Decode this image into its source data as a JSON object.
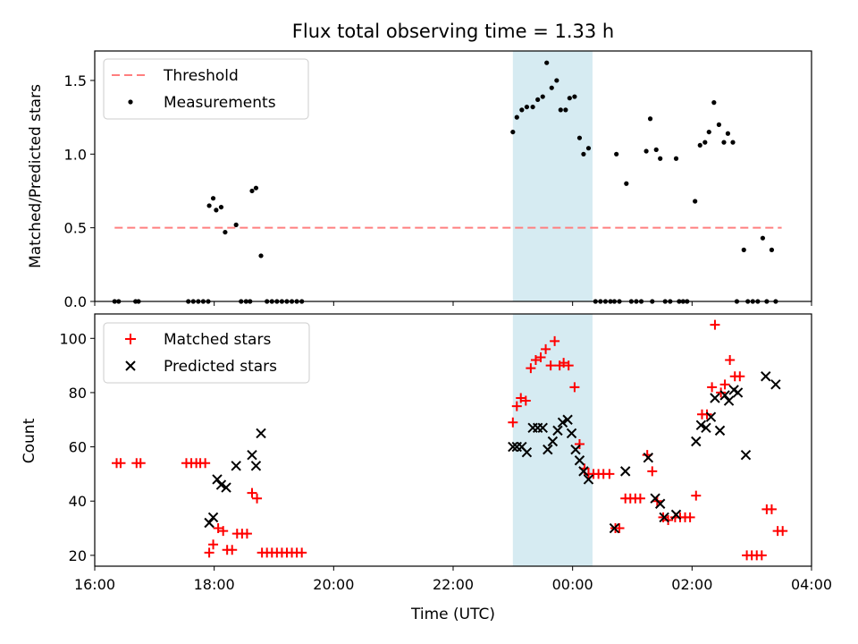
{
  "title": "Flux total observing time = 1.33 h",
  "colors": {
    "threshold": "#ff7f7f",
    "measure": "#000000",
    "matched": "#ff0000",
    "predicted": "#000000",
    "shade": "#add8e6"
  },
  "chart_data": [
    {
      "type": "scatter",
      "ylabel": "Matched/Predicted stars",
      "xlim": [
        "16:00",
        "04:00"
      ],
      "ylim": [
        0,
        1.7
      ],
      "yticks": [
        "0.0",
        "0.5",
        "1.0",
        "1.5"
      ],
      "legend": {
        "placement": "top-left",
        "entries": [
          "Threshold",
          "Measurements"
        ]
      },
      "shaded_interval": [
        "23:00",
        "00:20"
      ],
      "threshold": {
        "name": "Threshold",
        "value": 0.5,
        "x_range": [
          "16:20",
          "03:30"
        ]
      },
      "series": [
        {
          "name": "Measurements",
          "points": [
            [
              "16:20",
              0
            ],
            [
              "16:24",
              0
            ],
            [
              "16:41",
              0
            ],
            [
              "16:44",
              0
            ],
            [
              "17:34",
              0
            ],
            [
              "17:39",
              0
            ],
            [
              "17:44",
              0
            ],
            [
              "17:49",
              0
            ],
            [
              "17:54",
              0
            ],
            [
              "17:55",
              0.65
            ],
            [
              "17:59",
              0.7
            ],
            [
              "18:02",
              0.62
            ],
            [
              "18:07",
              0.64
            ],
            [
              "18:11",
              0.47
            ],
            [
              "18:22",
              0.52
            ],
            [
              "18:27",
              0
            ],
            [
              "18:32",
              0
            ],
            [
              "18:36",
              0
            ],
            [
              "18:38",
              0.75
            ],
            [
              "18:42",
              0.77
            ],
            [
              "18:47",
              0.31
            ],
            [
              "18:53",
              0
            ],
            [
              "18:58",
              0
            ],
            [
              "19:03",
              0
            ],
            [
              "19:08",
              0
            ],
            [
              "19:13",
              0
            ],
            [
              "19:18",
              0
            ],
            [
              "19:23",
              0
            ],
            [
              "19:28",
              0
            ],
            [
              "23:00",
              1.15
            ],
            [
              "23:04",
              1.25
            ],
            [
              "23:09",
              1.3
            ],
            [
              "23:14",
              1.32
            ],
            [
              "23:20",
              1.32
            ],
            [
              "23:25",
              1.37
            ],
            [
              "23:30",
              1.39
            ],
            [
              "23:34",
              1.62
            ],
            [
              "23:39",
              1.45
            ],
            [
              "23:44",
              1.5
            ],
            [
              "23:48",
              1.3
            ],
            [
              "23:53",
              1.3
            ],
            [
              "23:57",
              1.38
            ],
            [
              "00:02",
              1.39
            ],
            [
              "00:07",
              1.11
            ],
            [
              "00:11",
              1.0
            ],
            [
              "00:16",
              1.04
            ],
            [
              "00:23",
              0
            ],
            [
              "00:28",
              0
            ],
            [
              "00:33",
              0
            ],
            [
              "00:38",
              0
            ],
            [
              "00:42",
              0
            ],
            [
              "00:44",
              1.0
            ],
            [
              "00:47",
              0
            ],
            [
              "00:54",
              0.8
            ],
            [
              "00:59",
              0
            ],
            [
              "01:04",
              0
            ],
            [
              "01:09",
              0
            ],
            [
              "01:14",
              1.02
            ],
            [
              "01:18",
              1.24
            ],
            [
              "01:20",
              0
            ],
            [
              "01:24",
              1.03
            ],
            [
              "01:28",
              0.97
            ],
            [
              "01:33",
              0
            ],
            [
              "01:38",
              0
            ],
            [
              "01:44",
              0.97
            ],
            [
              "01:47",
              0
            ],
            [
              "01:51",
              0
            ],
            [
              "01:55",
              0
            ],
            [
              "02:03",
              0.68
            ],
            [
              "02:08",
              1.06
            ],
            [
              "02:13",
              1.08
            ],
            [
              "02:17",
              1.15
            ],
            [
              "02:22",
              1.35
            ],
            [
              "02:27",
              1.2
            ],
            [
              "02:32",
              1.08
            ],
            [
              "02:36",
              1.14
            ],
            [
              "02:41",
              1.08
            ],
            [
              "02:45",
              0
            ],
            [
              "02:52",
              0.35
            ],
            [
              "02:56",
              0
            ],
            [
              "03:01",
              0
            ],
            [
              "03:06",
              0
            ],
            [
              "03:11",
              0.43
            ],
            [
              "03:15",
              0
            ],
            [
              "03:20",
              0.35
            ],
            [
              "03:24",
              0
            ]
          ]
        }
      ]
    },
    {
      "type": "scatter",
      "xlabel": "Time (UTC)",
      "ylabel": "Count",
      "xlim": [
        "16:00",
        "04:00"
      ],
      "ylim": [
        16,
        109
      ],
      "xticks": [
        "16:00",
        "18:00",
        "20:00",
        "22:00",
        "00:00",
        "02:00",
        "04:00"
      ],
      "yticks": [
        "20",
        "40",
        "60",
        "80",
        "100"
      ],
      "legend": {
        "placement": "top-left",
        "entries": [
          "Matched stars",
          "Predicted stars"
        ]
      },
      "shaded_interval": [
        "23:00",
        "00:20"
      ],
      "series": [
        {
          "name": "Matched stars",
          "marker": "+",
          "points": [
            [
              "16:22",
              54
            ],
            [
              "16:26",
              54
            ],
            [
              "16:42",
              54
            ],
            [
              "16:46",
              54
            ],
            [
              "17:32",
              54
            ],
            [
              "17:37",
              54
            ],
            [
              "17:42",
              54
            ],
            [
              "17:46",
              54
            ],
            [
              "17:51",
              54
            ],
            [
              "17:55",
              21
            ],
            [
              "17:59",
              24
            ],
            [
              "18:04",
              30
            ],
            [
              "18:09",
              29
            ],
            [
              "18:13",
              22
            ],
            [
              "18:18",
              22
            ],
            [
              "18:23",
              28
            ],
            [
              "18:28",
              28
            ],
            [
              "18:33",
              28
            ],
            [
              "18:38",
              43
            ],
            [
              "18:43",
              41
            ],
            [
              "18:48",
              21
            ],
            [
              "18:53",
              21
            ],
            [
              "18:58",
              21
            ],
            [
              "19:03",
              21
            ],
            [
              "19:08",
              21
            ],
            [
              "19:13",
              21
            ],
            [
              "19:18",
              21
            ],
            [
              "19:23",
              21
            ],
            [
              "19:28",
              21
            ],
            [
              "23:00",
              69
            ],
            [
              "23:04",
              75
            ],
            [
              "23:08",
              78
            ],
            [
              "23:13",
              77
            ],
            [
              "23:18",
              89
            ],
            [
              "23:23",
              92
            ],
            [
              "23:28",
              93
            ],
            [
              "23:33",
              96
            ],
            [
              "23:38",
              90
            ],
            [
              "23:42",
              99
            ],
            [
              "23:47",
              90
            ],
            [
              "23:51",
              91
            ],
            [
              "23:56",
              90
            ],
            [
              "00:02",
              82
            ],
            [
              "00:07",
              61
            ],
            [
              "00:12",
              52
            ],
            [
              "00:16",
              50
            ],
            [
              "00:21",
              50
            ],
            [
              "00:26",
              50
            ],
            [
              "00:31",
              50
            ],
            [
              "00:37",
              50
            ],
            [
              "00:43",
              30
            ],
            [
              "00:47",
              30
            ],
            [
              "00:53",
              41
            ],
            [
              "00:58",
              41
            ],
            [
              "01:03",
              41
            ],
            [
              "01:08",
              41
            ],
            [
              "01:15",
              57
            ],
            [
              "01:20",
              51
            ],
            [
              "01:25",
              40
            ],
            [
              "01:31",
              34
            ],
            [
              "01:36",
              33
            ],
            [
              "01:43",
              34
            ],
            [
              "01:48",
              34
            ],
            [
              "01:53",
              34
            ],
            [
              "01:58",
              34
            ],
            [
              "02:04",
              42
            ],
            [
              "02:10",
              72
            ],
            [
              "02:15",
              72
            ],
            [
              "02:20",
              82
            ],
            [
              "02:23",
              105
            ],
            [
              "02:29",
              80
            ],
            [
              "02:33",
              83
            ],
            [
              "02:38",
              92
            ],
            [
              "02:43",
              86
            ],
            [
              "02:48",
              86
            ],
            [
              "02:55",
              20
            ],
            [
              "03:00",
              20
            ],
            [
              "03:05",
              20
            ],
            [
              "03:10",
              20
            ],
            [
              "03:15",
              37
            ],
            [
              "03:20",
              37
            ],
            [
              "03:26",
              29
            ],
            [
              "03:31",
              29
            ]
          ]
        },
        {
          "name": "Predicted stars",
          "marker": "x",
          "points": [
            [
              "17:55",
              32
            ],
            [
              "17:59",
              34
            ],
            [
              "18:03",
              48
            ],
            [
              "18:07",
              46
            ],
            [
              "18:12",
              45
            ],
            [
              "18:22",
              53
            ],
            [
              "18:38",
              57
            ],
            [
              "18:42",
              53
            ],
            [
              "18:47",
              65
            ],
            [
              "23:00",
              60
            ],
            [
              "23:04",
              60
            ],
            [
              "23:09",
              60
            ],
            [
              "23:14",
              58
            ],
            [
              "23:20",
              67
            ],
            [
              "23:25",
              67
            ],
            [
              "23:30",
              67
            ],
            [
              "23:35",
              59
            ],
            [
              "23:40",
              62
            ],
            [
              "23:45",
              66
            ],
            [
              "23:50",
              69
            ],
            [
              "23:55",
              70
            ],
            [
              "23:59",
              65
            ],
            [
              "00:03",
              59
            ],
            [
              "00:07",
              55
            ],
            [
              "00:11",
              51
            ],
            [
              "00:16",
              48
            ],
            [
              "00:42",
              30
            ],
            [
              "00:53",
              51
            ],
            [
              "01:16",
              56
            ],
            [
              "01:23",
              41
            ],
            [
              "01:28",
              39
            ],
            [
              "01:32",
              34
            ],
            [
              "01:44",
              35
            ],
            [
              "02:04",
              62
            ],
            [
              "02:09",
              68
            ],
            [
              "02:14",
              67
            ],
            [
              "02:19",
              71
            ],
            [
              "02:23",
              78
            ],
            [
              "02:28",
              66
            ],
            [
              "02:33",
              79
            ],
            [
              "02:37",
              77
            ],
            [
              "02:42",
              81
            ],
            [
              "02:46",
              80
            ],
            [
              "02:54",
              57
            ],
            [
              "03:14",
              86
            ],
            [
              "03:24",
              83
            ]
          ]
        }
      ]
    }
  ]
}
